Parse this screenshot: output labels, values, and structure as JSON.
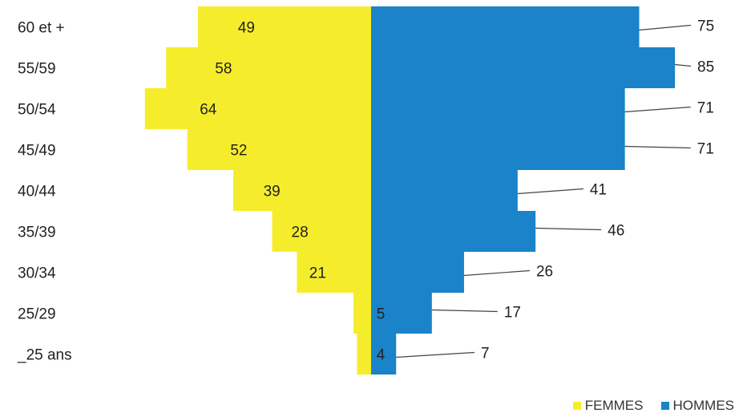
{
  "chart_data": {
    "type": "bar",
    "categories": [
      "60 et +",
      "55/59",
      "50/54",
      "45/49",
      "40/44",
      "35/39",
      "30/34",
      "25/29",
      "_25 ans"
    ],
    "series": [
      {
        "name": "FEMMES",
        "values": [
          49,
          58,
          64,
          52,
          39,
          28,
          21,
          5,
          4
        ],
        "color": "#f5ed2b"
      },
      {
        "name": "HOMMES",
        "values": [
          75,
          85,
          71,
          71,
          41,
          46,
          26,
          17,
          7
        ],
        "color": "#1a83c9"
      }
    ],
    "title": "",
    "xlabel": "",
    "ylabel": "",
    "legend_position": "bottom-right",
    "grid": false
  }
}
